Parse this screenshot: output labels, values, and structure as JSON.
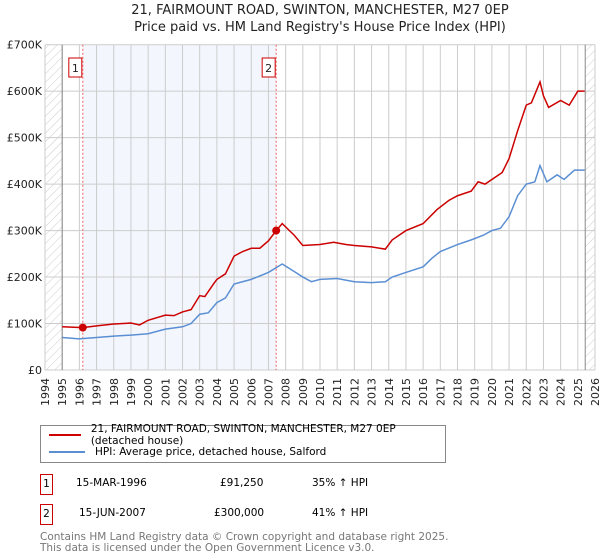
{
  "chart_data": {
    "type": "line",
    "title": "21, FAIRMOUNT ROAD, SWINTON, MANCHESTER, M27 0EP",
    "subtitle": "Price paid vs. HM Land Registry's House Price Index (HPI)",
    "xlim": [
      1994,
      2026
    ],
    "ylim": [
      0,
      700000
    ],
    "x_ticks": [
      "1994",
      "1995",
      "1996",
      "1997",
      "1998",
      "1999",
      "2000",
      "2001",
      "2002",
      "2003",
      "2004",
      "2005",
      "2006",
      "2007",
      "2008",
      "2009",
      "2010",
      "2011",
      "2012",
      "2013",
      "2014",
      "2015",
      "2016",
      "2017",
      "2018",
      "2019",
      "2020",
      "2021",
      "2022",
      "2023",
      "2024",
      "2025",
      "2026"
    ],
    "y_ticks": [
      {
        "v": 0,
        "label": "£0"
      },
      {
        "v": 100000,
        "label": "£100K"
      },
      {
        "v": 200000,
        "label": "£200K"
      },
      {
        "v": 300000,
        "label": "£300K"
      },
      {
        "v": 400000,
        "label": "£400K"
      },
      {
        "v": 500000,
        "label": "£500K"
      },
      {
        "v": 600000,
        "label": "£600K"
      },
      {
        "v": 700000,
        "label": "£700K"
      }
    ],
    "grid": true,
    "series": [
      {
        "name": "21, FAIRMOUNT ROAD, SWINTON, MANCHESTER, M27 0EP (detached house)",
        "color": "#cc0000",
        "x": [
          1995,
          1996.2,
          1997,
          1998,
          1999,
          1999.5,
          2000,
          2001,
          2001.5,
          2002,
          2002.5,
          2003,
          2003.3,
          2003.8,
          2004,
          2004.5,
          2005,
          2005.5,
          2006,
          2006.5,
          2007,
          2007.45,
          2007.8,
          2008.5,
          2009,
          2010,
          2010.8,
          2011.5,
          2012,
          2013,
          2013.8,
          2014.2,
          2015,
          2016,
          2016.8,
          2017.5,
          2018,
          2018.8,
          2019.2,
          2019.6,
          2020,
          2020.6,
          2021,
          2021.5,
          2022,
          2022.3,
          2022.8,
          2023,
          2023.3,
          2024,
          2024.5,
          2025,
          2025.4
        ],
        "y": [
          93000,
          91250,
          95000,
          99000,
          101000,
          97000,
          107000,
          118000,
          117000,
          125000,
          130000,
          160000,
          158000,
          185000,
          195000,
          207000,
          245000,
          255000,
          262000,
          262000,
          278000,
          300000,
          315000,
          290000,
          268000,
          270000,
          275000,
          270000,
          268000,
          265000,
          260000,
          280000,
          300000,
          315000,
          345000,
          365000,
          375000,
          385000,
          405000,
          400000,
          410000,
          425000,
          455000,
          515000,
          570000,
          575000,
          620000,
          590000,
          565000,
          580000,
          570000,
          600000,
          600000
        ]
      },
      {
        "name": "HPI: Average price, detached house, Salford",
        "color": "#5b8fd4",
        "x": [
          1995,
          1996,
          1997,
          1998,
          1999,
          2000,
          2001,
          2002,
          2002.5,
          2003,
          2003.5,
          2004,
          2004.5,
          2005,
          2006,
          2007,
          2007.8,
          2008.5,
          2009,
          2009.5,
          2010,
          2011,
          2012,
          2013,
          2013.8,
          2014.2,
          2015,
          2016,
          2016.5,
          2017,
          2018,
          2018.8,
          2019.5,
          2020,
          2020.5,
          2021,
          2021.5,
          2022,
          2022.5,
          2022.8,
          2023.2,
          2023.8,
          2024.2,
          2024.8,
          2025.4
        ],
        "y": [
          70000,
          67000,
          70000,
          73000,
          75000,
          78000,
          88000,
          93000,
          100000,
          120000,
          123000,
          145000,
          155000,
          185000,
          195000,
          210000,
          228000,
          212000,
          200000,
          190000,
          195000,
          197000,
          190000,
          188000,
          190000,
          200000,
          210000,
          222000,
          240000,
          255000,
          270000,
          280000,
          290000,
          300000,
          305000,
          330000,
          375000,
          400000,
          405000,
          440000,
          405000,
          420000,
          410000,
          430000,
          430000
        ]
      }
    ],
    "sales": [
      {
        "label": "1",
        "x": 1996.2,
        "y": 91250
      },
      {
        "label": "2",
        "x": 2007.45,
        "y": 300000
      }
    ],
    "legend": "below"
  },
  "table": [
    {
      "num": "1",
      "date": "15-MAR-1996",
      "price": "£91,250",
      "hpi": "35% ↑ HPI"
    },
    {
      "num": "2",
      "date": "15-JUN-2007",
      "price": "£300,000",
      "hpi": "41% ↑ HPI"
    }
  ],
  "footer": [
    "Contains HM Land Registry data © Crown copyright and database right 2025.",
    "This data is licensed under the Open Government Licence v3.0."
  ]
}
